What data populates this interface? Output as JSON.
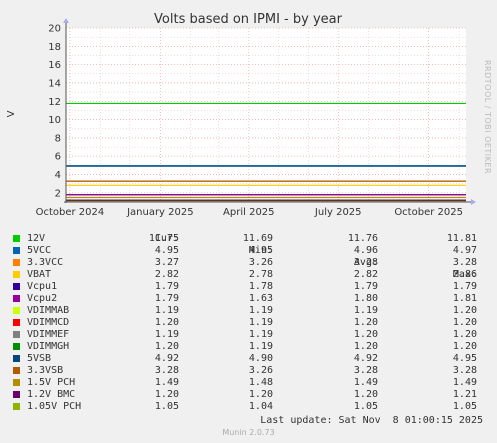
{
  "chart_data": {
    "type": "line",
    "title": "Volts based on IPMI - by year",
    "ylabel": "V",
    "ylim": [
      1,
      20
    ],
    "yticks": [
      2,
      4,
      6,
      8,
      10,
      12,
      14,
      16,
      18,
      20
    ],
    "x_range": [
      "2024-09-27",
      "2025-11-08"
    ],
    "xticks": [
      {
        "date": "2024-10-01",
        "label": "October 2024"
      },
      {
        "date": "2025-01-01",
        "label": "January 2025"
      },
      {
        "date": "2025-04-01",
        "label": "April 2025"
      },
      {
        "date": "2025-07-01",
        "label": "July 2025"
      },
      {
        "date": "2025-10-01",
        "label": "October 2025"
      }
    ],
    "grid": true,
    "side_label": "RRDTOOL / TOBI OETIKER",
    "legend_header": {
      "cur": "Cur:",
      "min": "Min:",
      "avg": "Avg:",
      "max": "Max:"
    },
    "series": [
      {
        "name": "12V",
        "color": "#00cc00",
        "cur": "11.75",
        "min": "11.69",
        "avg": "11.76",
        "max": "11.81",
        "value": 11.76
      },
      {
        "name": "5VCC",
        "color": "#0066b3",
        "cur": "4.95",
        "min": "4.95",
        "avg": "4.96",
        "max": "4.97",
        "value": 4.96
      },
      {
        "name": "3.3VCC",
        "color": "#ff8000",
        "cur": "3.27",
        "min": "3.26",
        "avg": "3.28",
        "max": "3.28",
        "value": 3.28
      },
      {
        "name": "VBAT",
        "color": "#ffcc00",
        "cur": "2.82",
        "min": "2.78",
        "avg": "2.82",
        "max": "2.86",
        "value": 2.82
      },
      {
        "name": "Vcpu1",
        "color": "#330099",
        "cur": "1.79",
        "min": "1.78",
        "avg": "1.79",
        "max": "1.79",
        "value": 1.79
      },
      {
        "name": "Vcpu2",
        "color": "#990099",
        "cur": "1.79",
        "min": "1.63",
        "avg": "1.80",
        "max": "1.81",
        "value": 1.8
      },
      {
        "name": "VDIMMAB",
        "color": "#ccff00",
        "cur": "1.19",
        "min": "1.19",
        "avg": "1.19",
        "max": "1.20",
        "value": 1.19
      },
      {
        "name": "VDIMMCD",
        "color": "#ff0000",
        "cur": "1.20",
        "min": "1.19",
        "avg": "1.20",
        "max": "1.20",
        "value": 1.2
      },
      {
        "name": "VDIMMEF",
        "color": "#808080",
        "cur": "1.19",
        "min": "1.19",
        "avg": "1.20",
        "max": "1.20",
        "value": 1.2
      },
      {
        "name": "VDIMMGH",
        "color": "#008f00",
        "cur": "1.20",
        "min": "1.19",
        "avg": "1.20",
        "max": "1.20",
        "value": 1.2
      },
      {
        "name": "5VSB",
        "color": "#00487d",
        "cur": "4.92",
        "min": "4.90",
        "avg": "4.92",
        "max": "4.95",
        "value": 4.92
      },
      {
        "name": "3.3VSB",
        "color": "#b35a00",
        "cur": "3.28",
        "min": "3.26",
        "avg": "3.28",
        "max": "3.28",
        "value": 3.28
      },
      {
        "name": "1.5V PCH",
        "color": "#b38f00",
        "cur": "1.49",
        "min": "1.48",
        "avg": "1.49",
        "max": "1.49",
        "value": 1.49
      },
      {
        "name": "1.2V BMC",
        "color": "#6b006b",
        "cur": "1.20",
        "min": "1.20",
        "avg": "1.20",
        "max": "1.21",
        "value": 1.2
      },
      {
        "name": "1.05V PCH",
        "color": "#8fb300",
        "cur": "1.05",
        "min": "1.04",
        "avg": "1.05",
        "max": "1.05",
        "value": 1.05
      }
    ]
  },
  "footer": {
    "last_update": "Last update: Sat Nov  8 01:00:15 2025",
    "version": "Munin 2.0.73"
  }
}
